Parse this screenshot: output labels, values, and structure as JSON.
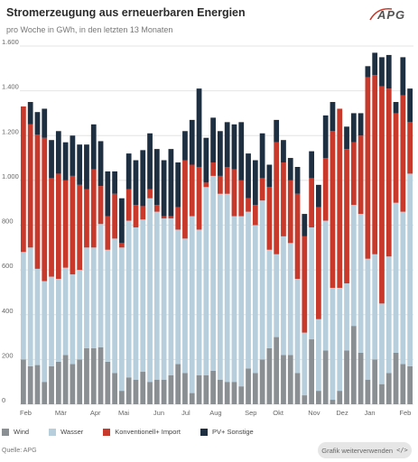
{
  "header": {
    "title": "Stromerzeugung aus erneuerbaren Energien",
    "subtitle": "pro Woche in GWh, in den letzten 13 Monaten",
    "logo_text": "APG"
  },
  "footer": {
    "source": "Quelle: APG",
    "cta_label": "Grafik weiterverwenden",
    "cta_icon": "code-icon"
  },
  "chart_data": {
    "type": "bar",
    "stacked": true,
    "ylim": [
      0,
      1600
    ],
    "yticks": [
      0,
      200,
      400,
      600,
      800,
      1000,
      1200,
      1400,
      1600
    ],
    "ytick_labels": [
      "0",
      "200",
      "400",
      "600",
      "800",
      "1.000",
      "1.200",
      "1.400",
      "1.600"
    ],
    "grid": true,
    "legend_position": "bottom-left",
    "month_labels": [
      {
        "label": "Feb",
        "week": 0
      },
      {
        "label": "Mär",
        "week": 5
      },
      {
        "label": "Apr",
        "week": 10
      },
      {
        "label": "Mai",
        "week": 14
      },
      {
        "label": "Jun",
        "week": 19
      },
      {
        "label": "Jul",
        "week": 23
      },
      {
        "label": "Aug",
        "week": 27
      },
      {
        "label": "Sep",
        "week": 32
      },
      {
        "label": "Okt",
        "week": 36
      },
      {
        "label": "Nov",
        "week": 41
      },
      {
        "label": "Dez",
        "week": 45
      },
      {
        "label": "Jan",
        "week": 49
      },
      {
        "label": "Feb",
        "week": 54
      }
    ],
    "series": [
      {
        "name": "Wind",
        "color": "#8a8f93",
        "values": [
          200,
          170,
          175,
          100,
          170,
          190,
          220,
          180,
          200,
          250,
          250,
          255,
          190,
          140,
          60,
          120,
          110,
          145,
          100,
          110,
          110,
          130,
          180,
          140,
          50,
          130,
          130,
          150,
          110,
          100,
          100,
          80,
          160,
          140,
          200,
          250,
          300,
          220,
          220,
          140,
          40,
          290,
          60,
          240,
          20,
          60,
          240,
          350,
          230,
          110,
          200,
          90,
          140,
          230,
          180,
          170
        ]
      },
      {
        "name": "Wasser",
        "color": "#b7cfdd",
        "values": [
          480,
          530,
          430,
          450,
          400,
          370,
          390,
          400,
          400,
          450,
          450,
          550,
          500,
          600,
          640,
          700,
          680,
          680,
          820,
          750,
          720,
          700,
          600,
          600,
          790,
          650,
          840,
          870,
          830,
          840,
          740,
          760,
          700,
          660,
          710,
          440,
          370,
          530,
          500,
          420,
          280,
          500,
          320,
          580,
          500,
          460,
          300,
          540,
          620,
          540,
          470,
          360,
          520,
          670,
          680,
          860
        ]
      },
      {
        "name": "Konventionell+ Import",
        "color": "#c8382b",
        "values": [
          650,
          550,
          600,
          640,
          440,
          470,
          390,
          440,
          380,
          260,
          350,
          170,
          150,
          200,
          20,
          140,
          100,
          60,
          40,
          30,
          10,
          10,
          100,
          350,
          230,
          280,
          20,
          60,
          80,
          120,
          210,
          160,
          60,
          90,
          100,
          280,
          500,
          330,
          280,
          380,
          430,
          220,
          500,
          280,
          700,
          800,
          600,
          280,
          350,
          810,
          800,
          970,
          750,
          400,
          520,
          230
        ]
      },
      {
        "name": "PV+ Sonstige",
        "color": "#1f2f42",
        "values": [
          0,
          100,
          100,
          130,
          170,
          190,
          170,
          180,
          180,
          200,
          200,
          200,
          200,
          100,
          200,
          160,
          200,
          250,
          250,
          250,
          250,
          300,
          200,
          130,
          200,
          350,
          200,
          200,
          200,
          200,
          200,
          260,
          200,
          200,
          200,
          100,
          100,
          100,
          100,
          120,
          100,
          120,
          100,
          190,
          130,
          0,
          100,
          130,
          100,
          50,
          100,
          130,
          150,
          50,
          170,
          150
        ]
      }
    ]
  }
}
